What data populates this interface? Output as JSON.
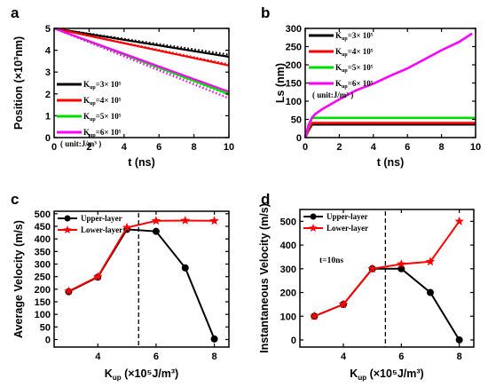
{
  "chart_data": [
    {
      "panel": "a",
      "type": "line",
      "xlabel": "t (ns)",
      "ylabel": "Position (×10³nm)",
      "xlim": [
        0,
        10
      ],
      "ylim": [
        0,
        5
      ],
      "xticks": [
        "0",
        "2",
        "4",
        "6",
        "8",
        "10"
      ],
      "yticks": [
        "0",
        "1",
        "2",
        "3",
        "4",
        "5"
      ],
      "legend_position": "left",
      "legend_note": "( unit:J/m³ )",
      "series": [
        {
          "name": "Kup=3× 10⁵",
          "color": "#000000",
          "x": [
            0,
            10
          ],
          "solid": [
            5.0,
            3.7
          ],
          "dotted": [
            5.0,
            3.8
          ]
        },
        {
          "name": "Kup=4× 10⁵",
          "color": "#ff0000",
          "x": [
            0,
            10
          ],
          "solid": [
            5.0,
            3.3
          ],
          "dotted": [
            5.0,
            3.35
          ]
        },
        {
          "name": "Kup=5× 10⁵",
          "color": "#00dd00",
          "x": [
            0,
            10
          ],
          "solid": [
            5.0,
            2.0
          ],
          "dotted": [
            5.0,
            1.95
          ]
        },
        {
          "name": "Kup=6× 10⁵",
          "color": "#ff00ff",
          "x": [
            0,
            10
          ],
          "solid": [
            5.0,
            2.1
          ],
          "dotted": [
            5.0,
            1.8
          ]
        }
      ]
    },
    {
      "panel": "b",
      "type": "line",
      "xlabel": "t (ns)",
      "ylabel": "Ls (nm)",
      "xlim": [
        0,
        10
      ],
      "ylim": [
        0,
        300
      ],
      "xticks": [
        "0",
        "2",
        "4",
        "6",
        "8",
        "10"
      ],
      "yticks": [
        "0",
        "50",
        "100",
        "150",
        "200",
        "250",
        "300"
      ],
      "legend_position": "top-left",
      "legend_note": "( unit:J/m³ )",
      "series": [
        {
          "name": "Kup=3× 10⁵",
          "color": "#000000",
          "x": [
            0,
            0.2,
            0.4,
            10
          ],
          "y": [
            0,
            20,
            36,
            36
          ]
        },
        {
          "name": "Kup=4× 10⁵",
          "color": "#ff0000",
          "x": [
            0,
            0.2,
            0.4,
            10
          ],
          "y": [
            0,
            22,
            40,
            40
          ]
        },
        {
          "name": "Kup=5× 10⁵",
          "color": "#00dd00",
          "x": [
            0,
            0.2,
            0.4,
            10
          ],
          "y": [
            0,
            30,
            54,
            54
          ]
        },
        {
          "name": "Kup=6× 10⁵",
          "color": "#ff00ff",
          "x": [
            0,
            0.2,
            0.4,
            0.6,
            1,
            2,
            3,
            4,
            5,
            6,
            7,
            8,
            9,
            9.8
          ],
          "y": [
            0,
            35,
            55,
            65,
            78,
            105,
            130,
            148,
            170,
            190,
            215,
            240,
            262,
            286
          ]
        }
      ]
    },
    {
      "panel": "c",
      "type": "line",
      "xlabel": "Kup (×10⁵J/m³)",
      "ylabel": "Average Velocity (m/s)",
      "xlim": [
        2.5,
        8.5
      ],
      "ylim": [
        -30,
        510
      ],
      "xticks": [
        "4",
        "6",
        "8"
      ],
      "yticks": [
        "0",
        "50",
        "100",
        "150",
        "200",
        "250",
        "300",
        "350",
        "400",
        "450",
        "500"
      ],
      "vline_x": 5.4,
      "legend_position": "top-left",
      "series": [
        {
          "name": "Upper-layer",
          "color": "#000000",
          "marker": "circle",
          "x": [
            3,
            4,
            5,
            6,
            7,
            8
          ],
          "y": [
            190,
            248,
            438,
            430,
            285,
            2
          ]
        },
        {
          "name": "Lower-layer",
          "color": "#ff0000",
          "marker": "star",
          "x": [
            3,
            4,
            5,
            6,
            7,
            8
          ],
          "y": [
            192,
            250,
            445,
            472,
            473,
            472
          ]
        }
      ]
    },
    {
      "panel": "d",
      "type": "line",
      "xlabel": "Kup (×10⁵J/m³)",
      "ylabel": "Instantaneous Velocity (m/s)",
      "xlim": [
        2.5,
        8.5
      ],
      "ylim": [
        -30,
        550
      ],
      "xticks": [
        "4",
        "6",
        "8"
      ],
      "yticks": [
        "0",
        "100",
        "200",
        "300",
        "400",
        "500"
      ],
      "vline_x": 5.45,
      "annotation": "t=10ns",
      "legend_position": "top-left",
      "series": [
        {
          "name": "Upper-layer",
          "color": "#000000",
          "marker": "circle",
          "x": [
            3,
            4,
            5,
            6,
            7,
            8
          ],
          "y": [
            100,
            150,
            300,
            300,
            200,
            0
          ]
        },
        {
          "name": "Lower-layer",
          "color": "#ff0000",
          "marker": "star",
          "x": [
            3,
            4,
            5,
            6,
            7,
            8
          ],
          "y": [
            100,
            150,
            300,
            320,
            330,
            500
          ]
        }
      ]
    }
  ]
}
